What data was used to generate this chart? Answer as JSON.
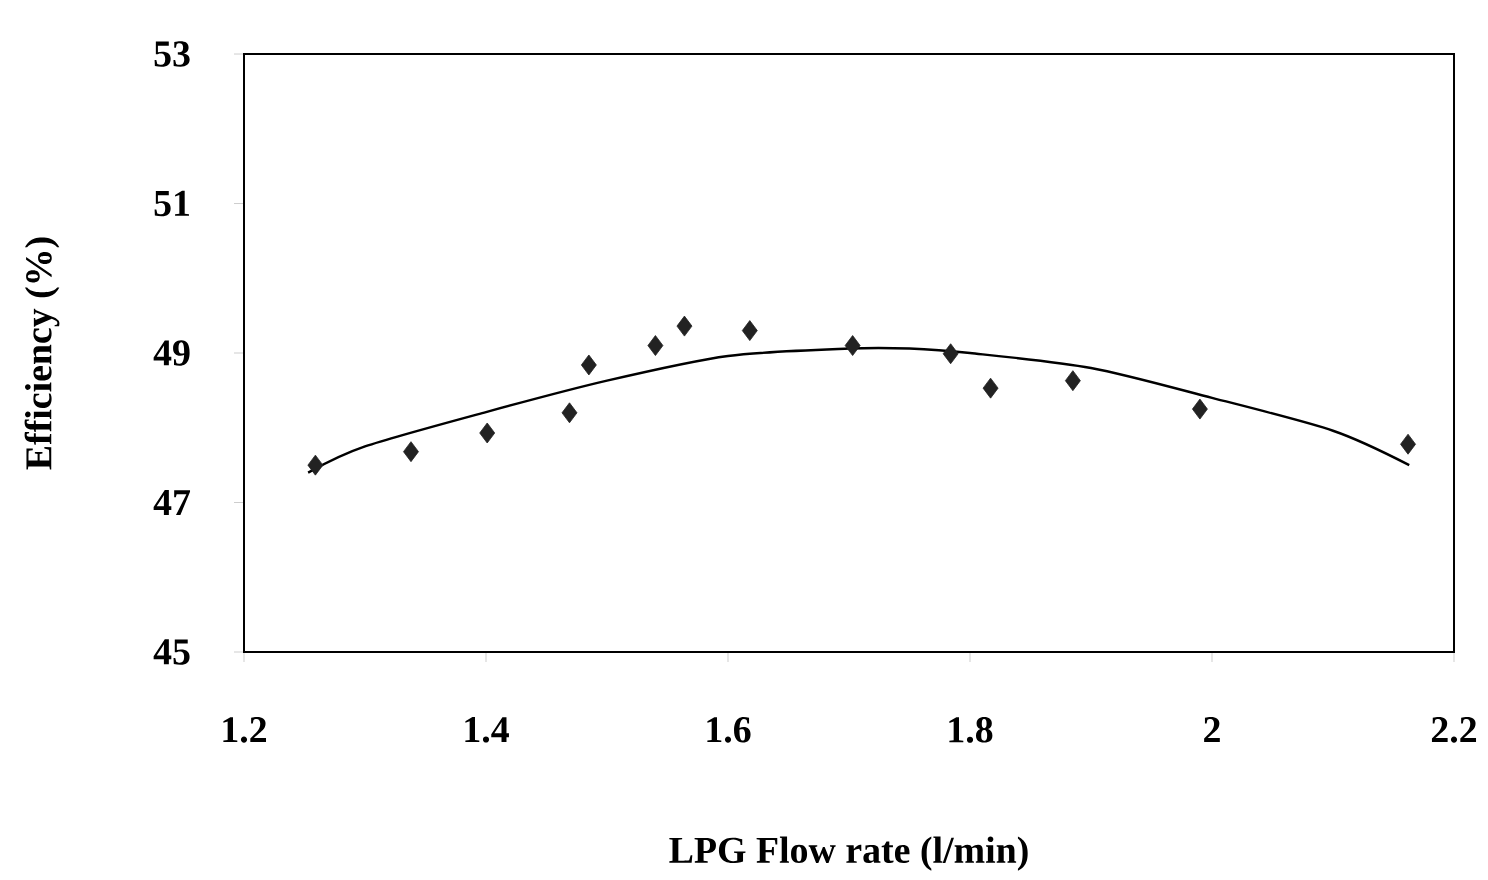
{
  "chart_data": {
    "type": "scatter",
    "xlabel": "LPG Flow rate (l/min)",
    "ylabel": "Efficiency (%)",
    "xlim": [
      1.2,
      2.2
    ],
    "xticks": [
      1.2,
      1.4,
      1.6,
      1.8,
      2,
      2.2
    ],
    "ylim": [
      45,
      53
    ],
    "yticks": [
      45,
      47,
      49,
      51,
      53
    ],
    "grid": false,
    "marker": "diamond",
    "series": [
      {
        "color": "#222222",
        "x": [
          1.259,
          1.338,
          1.401,
          1.469,
          1.485,
          1.54,
          1.564,
          1.618,
          1.703,
          1.784,
          1.817,
          1.885,
          1.99,
          2.162
        ],
        "values": [
          47.5,
          47.68,
          47.93,
          48.2,
          48.84,
          49.1,
          49.36,
          49.3,
          49.1,
          48.99,
          48.53,
          48.63,
          48.25,
          47.78
        ]
      },
      {
        "type": "line",
        "color": "#000000",
        "marker": "none",
        "line_style": "solid",
        "x": [
          1.253,
          1.3,
          1.4,
          1.5,
          1.6,
          1.7,
          1.75,
          1.8,
          1.9,
          2.0,
          2.1,
          2.163
        ],
        "values": [
          47.4,
          47.75,
          48.21,
          48.63,
          48.96,
          49.06,
          49.06,
          49.0,
          48.8,
          48.4,
          47.96,
          47.5
        ]
      }
    ]
  }
}
